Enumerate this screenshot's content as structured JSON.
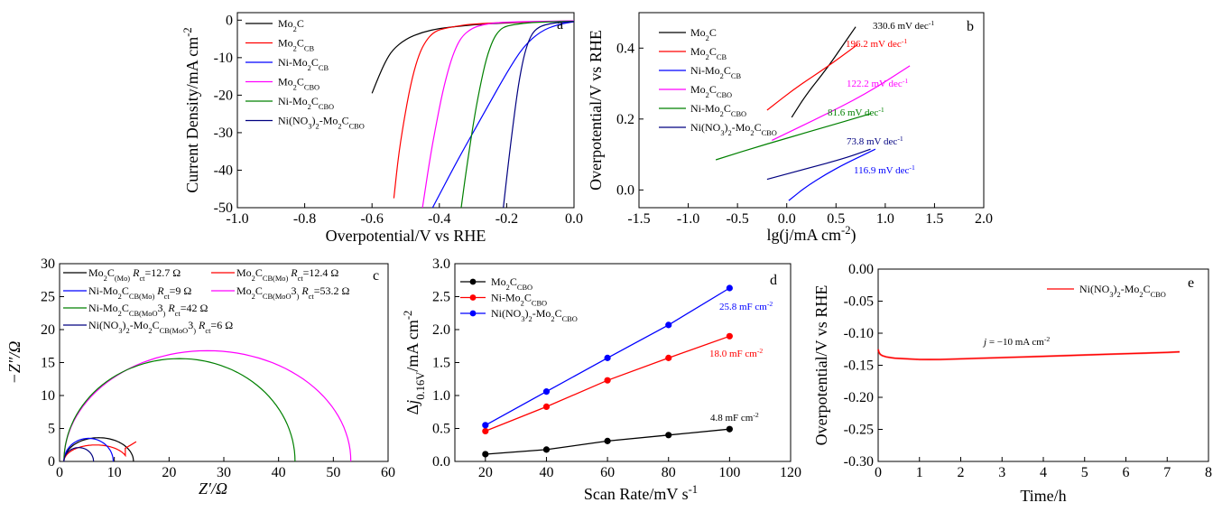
{
  "chart_data": [
    {
      "id": "a",
      "type": "line",
      "panel_label": "a",
      "xlabel": "Overpotential/V vs RHE",
      "ylabel": "Current Density/mA cm",
      "ylabel_sup": "-2",
      "xlim": [
        -1.0,
        0.0
      ],
      "ylim": [
        -50,
        2
      ],
      "xticks": [
        "-1.0",
        "-0.8",
        "-0.6",
        "-0.4",
        "-0.2",
        "0.0"
      ],
      "yticks": [
        "0",
        "-10",
        "-20",
        "-30",
        "-40",
        "-50"
      ],
      "legend_placement": "top-left",
      "series": [
        {
          "name": [
            "Mo",
            "2",
            "C",
            ""
          ],
          "color": "#000000",
          "x": [
            -0.6,
            -0.58,
            -0.56,
            -0.54,
            -0.5,
            -0.45,
            -0.4,
            -0.3,
            -0.2,
            -0.1,
            0.0
          ],
          "y": [
            -19.5,
            -15,
            -11,
            -8,
            -5,
            -3.2,
            -2.2,
            -1.2,
            -0.7,
            -0.4,
            -0.2
          ]
        },
        {
          "name": [
            "Mo",
            "2",
            "C",
            "CB"
          ],
          "color": "#ff0000",
          "x": [
            -0.535,
            -0.52,
            -0.5,
            -0.48,
            -0.46,
            -0.44,
            -0.42,
            -0.4,
            -0.35,
            -0.3,
            -0.2,
            -0.1,
            0.0
          ],
          "y": [
            -47.5,
            -35,
            -24,
            -15,
            -9,
            -5.5,
            -3.5,
            -2.5,
            -1.6,
            -1.0,
            -0.6,
            -0.4,
            -0.3
          ]
        },
        {
          "name": [
            "Ni-Mo",
            "2",
            "C",
            "CB"
          ],
          "color": "#0000ff",
          "x": [
            -0.42,
            -0.35,
            -0.3,
            -0.25,
            -0.2,
            -0.15,
            -0.1,
            -0.05,
            0.0
          ],
          "y": [
            -50,
            -38,
            -30,
            -22,
            -14,
            -7,
            -3,
            -1.2,
            -0.4
          ]
        },
        {
          "name": [
            "Mo",
            "2",
            "C",
            "CBO"
          ],
          "color": "#ff00ff",
          "x": [
            -0.45,
            -0.43,
            -0.41,
            -0.39,
            -0.37,
            -0.35,
            -0.33,
            -0.3,
            -0.27,
            -0.24,
            -0.2,
            -0.1,
            0.0
          ],
          "y": [
            -50,
            -38,
            -28,
            -19,
            -12,
            -7,
            -4,
            -2,
            -1.2,
            -0.8,
            -0.5,
            -0.3,
            -0.2
          ]
        },
        {
          "name": [
            "Ni-Mo",
            "2",
            "C",
            "CBO"
          ],
          "color": "#008000",
          "x": [
            -0.335,
            -0.32,
            -0.3,
            -0.28,
            -0.26,
            -0.24,
            -0.22,
            -0.2,
            -0.15,
            -0.1,
            0.0
          ],
          "y": [
            -50,
            -40,
            -28,
            -18,
            -10,
            -5,
            -2.5,
            -1.5,
            -0.8,
            -0.5,
            -0.3
          ]
        },
        {
          "name": [
            "Ni(NO",
            "3",
            ")",
            "2",
            "-Mo",
            "2",
            "C",
            "CBO"
          ],
          "color": "#000080",
          "x": [
            -0.21,
            -0.195,
            -0.18,
            -0.165,
            -0.15,
            -0.135,
            -0.12,
            -0.1,
            -0.07,
            -0.04,
            0.0
          ],
          "y": [
            -50,
            -38,
            -27,
            -17,
            -10,
            -5.5,
            -3,
            -1.6,
            -0.9,
            -0.6,
            -0.4
          ]
        }
      ]
    },
    {
      "id": "b",
      "type": "line",
      "panel_label": "b",
      "xlabel": "lg(j/mA cm",
      "xlabel_sup": "-2",
      "ylabel": "Overpotential/V vs RHE",
      "xlim": [
        -1.5,
        2.0
      ],
      "ylim": [
        -0.05,
        0.5
      ],
      "xticks": [
        "-1.5",
        "-1.0",
        "-0.5",
        "0.0",
        "0.5",
        "1.0",
        "1.5",
        "2.0"
      ],
      "yticks": [
        "0.0",
        "0.2",
        "0.4"
      ],
      "legend_placement": "top-left",
      "series": [
        {
          "name": [
            "Mo",
            "2",
            "C",
            ""
          ],
          "color": "#000000",
          "x": [
            0.05,
            0.2,
            0.4,
            0.55,
            0.7
          ],
          "y": [
            0.205,
            0.27,
            0.34,
            0.4,
            0.46
          ],
          "slope": "330.6 mV dec"
        },
        {
          "name": [
            "Mo",
            "2",
            "C",
            "CB"
          ],
          "color": "#ff0000",
          "x": [
            -0.2,
            0.1,
            0.4,
            0.72
          ],
          "y": [
            0.225,
            0.29,
            0.345,
            0.41
          ],
          "slope": "196.2 mV dec"
        },
        {
          "name": [
            "Ni-Mo",
            "2",
            "C",
            "CB"
          ],
          "color": "#0000ff",
          "x": [
            0.02,
            0.2,
            0.4,
            0.6,
            0.9
          ],
          "y": [
            -0.03,
            0.01,
            0.045,
            0.075,
            0.115
          ],
          "slope": "116.9 mV dec"
        },
        {
          "name": [
            "Mo",
            "2",
            "C",
            "CBO"
          ],
          "color": "#ff00ff",
          "x": [
            -0.15,
            0.3,
            0.8,
            1.25
          ],
          "y": [
            0.14,
            0.2,
            0.27,
            0.35
          ],
          "slope": "122.2 mV dec"
        },
        {
          "name": [
            "Ni-Mo",
            "2",
            "C",
            "CBO"
          ],
          "color": "#008000",
          "x": [
            -0.72,
            -0.2,
            0.3,
            0.85
          ],
          "y": [
            0.085,
            0.13,
            0.17,
            0.215
          ],
          "slope": "81.6 mV dec"
        },
        {
          "name": [
            "Ni(NO",
            "3",
            ")",
            "2",
            "-Mo",
            "2",
            "C",
            "CBO"
          ],
          "color": "#000080",
          "x": [
            -0.2,
            0.2,
            0.6,
            0.85
          ],
          "y": [
            0.03,
            0.06,
            0.09,
            0.115
          ],
          "slope": "73.8 mV dec"
        }
      ],
      "slope_unit_sup": "-1"
    },
    {
      "id": "c",
      "type": "line",
      "panel_label": "c",
      "xlabel": "Z′/Ω",
      "ylabel": "−Z″/Ω",
      "xlim": [
        0,
        60
      ],
      "ylim": [
        0,
        30
      ],
      "xticks": [
        "0",
        "10",
        "20",
        "30",
        "40",
        "50",
        "60"
      ],
      "yticks": [
        "0",
        "5",
        "10",
        "15",
        "20",
        "25",
        "30"
      ],
      "legend_placement": "top",
      "series": [
        {
          "name": [
            "Mo",
            "2",
            "C",
            "(Mo)"
          ],
          "rct": "=12.7 Ω",
          "color": "#000000",
          "start": 0.8,
          "end": 13.5,
          "peak": 3.6
        },
        {
          "name": [
            "Mo",
            "2",
            "C",
            "CB(Mo)"
          ],
          "rct": "=12.4 Ω",
          "color": "#ff0000",
          "start": 0.8,
          "end": 12.4,
          "peak": 2.5,
          "tail": [
            [
              12.0,
              2.0
            ],
            [
              13.0,
              2.5
            ],
            [
              14.0,
              3.0
            ]
          ]
        },
        {
          "name": [
            "Ni-Mo",
            "2",
            "C",
            "CB(Mo)"
          ],
          "rct": "=9 Ω",
          "color": "#0000ff",
          "start": 0.8,
          "end": 9.8,
          "peak": 3.5
        },
        {
          "name": [
            "Mo",
            "2",
            "C",
            "CB(MoO",
            "3",
            ")"
          ],
          "rct": "=53.2 Ω",
          "color": "#ff00ff",
          "start": 0.8,
          "end": 53.2,
          "peak": 16.8
        },
        {
          "name": [
            "Ni-Mo",
            "2",
            "C",
            "CB(MoO",
            "3",
            ")"
          ],
          "rct": "=42 Ω",
          "color": "#008000",
          "start": 0.8,
          "end": 43.0,
          "peak": 15.6
        },
        {
          "name": [
            "Ni(NO",
            "3",
            ")",
            "2",
            "-Mo",
            "2",
            "C",
            "CB(MoO",
            "3",
            ")"
          ],
          "rct": "=6 Ω",
          "color": "#000080",
          "start": 0.8,
          "end": 6.2,
          "peak": 2.1
        }
      ],
      "rct_label": "R",
      "rct_sub": "ct"
    },
    {
      "id": "d",
      "type": "scatter",
      "panel_label": "d",
      "xlabel": "Scan Rate/mV s",
      "xlabel_sup": "-1",
      "ylabel": "Δj",
      "ylabel_sub": "0.16V",
      "ylabel_rest": "/mA cm",
      "ylabel_sup": "-2",
      "xlim": [
        10,
        120
      ],
      "ylim": [
        0,
        3
      ],
      "xticks": [
        "20",
        "40",
        "60",
        "80",
        "100",
        "120"
      ],
      "yticks": [
        "0.0",
        "0.5",
        "1.0",
        "1.5",
        "2.0",
        "2.5",
        "3.0"
      ],
      "legend_placement": "top-left",
      "x": [
        20,
        40,
        60,
        80,
        100
      ],
      "series": [
        {
          "name": [
            "Mo",
            "2",
            "C",
            "CBO"
          ],
          "color": "#000000",
          "values": [
            0.11,
            0.18,
            0.31,
            0.4,
            0.49
          ],
          "slope": "4.8 mF cm"
        },
        {
          "name": [
            "Ni-Mo",
            "2",
            "C",
            "CBO"
          ],
          "color": "#ff0000",
          "values": [
            0.46,
            0.83,
            1.23,
            1.57,
            1.9
          ],
          "slope": "18.0 mF cm"
        },
        {
          "name": [
            "Ni(NO",
            "3",
            ")",
            "2",
            "-Mo",
            "2",
            "C",
            "CBO"
          ],
          "color": "#0000ff",
          "values": [
            0.55,
            1.06,
            1.57,
            2.07,
            2.63
          ],
          "slope": "25.8 mF cm"
        }
      ],
      "slope_unit_sup": "-2"
    },
    {
      "id": "e",
      "type": "line",
      "panel_label": "e",
      "xlabel": "Time/h",
      "ylabel": "Overpotential/V vs RHE",
      "xlim": [
        0,
        8
      ],
      "ylim": [
        -0.3,
        0.0
      ],
      "xticks": [
        "0",
        "1",
        "2",
        "3",
        "4",
        "5",
        "6",
        "7",
        "8"
      ],
      "yticks": [
        "0.00",
        "-0.05",
        "-0.10",
        "-0.15",
        "-0.20",
        "-0.25",
        "-0.30"
      ],
      "legend_placement": "top-right",
      "annotation": "j = −10 mA cm",
      "annotation_sup": "-2",
      "series": [
        {
          "name": [
            "Ni(NO",
            "3",
            ")",
            "2",
            "-Mo",
            "2",
            "C",
            "CBO"
          ],
          "color": "#ff0000",
          "x": [
            0,
            0.02,
            0.05,
            0.1,
            0.2,
            0.4,
            0.7,
            1.0,
            1.5,
            2.0,
            3.0,
            4.0,
            5.0,
            6.0,
            7.0,
            7.3
          ],
          "y": [
            -0.125,
            -0.13,
            -0.133,
            -0.135,
            -0.137,
            -0.139,
            -0.14,
            -0.141,
            -0.141,
            -0.14,
            -0.138,
            -0.136,
            -0.134,
            -0.132,
            -0.13,
            -0.129
          ]
        }
      ]
    }
  ]
}
